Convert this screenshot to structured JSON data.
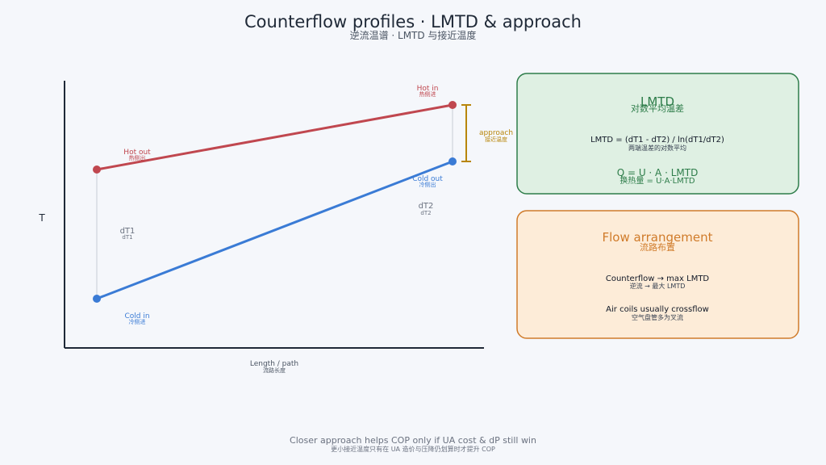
{
  "header": {
    "title": "Counterflow profiles · LMTD & approach",
    "subtitle": "逆流温谱 · LMTD 与接近温度"
  },
  "axes": {
    "y_label": "T",
    "x_label": "Length / path",
    "x_label_zh": "流路长度"
  },
  "streams": {
    "hot_in": {
      "label": "Hot in",
      "label_zh": "热侧进"
    },
    "hot_out": {
      "label": "Hot out",
      "label_zh": "热侧出"
    },
    "cold_in": {
      "label": "Cold in",
      "label_zh": "冷侧进"
    },
    "cold_out": {
      "label": "Cold out",
      "label_zh": "冷侧出"
    }
  },
  "diffs": {
    "dT1": {
      "label": "dT1",
      "label_zh": "dT1"
    },
    "dT2": {
      "label": "dT2",
      "label_zh": "dT2"
    },
    "approach": {
      "label": "approach",
      "label_zh": "接近温度"
    }
  },
  "panels": {
    "lmtd": {
      "title": "LMTD",
      "title_zh": "对数平均温差",
      "formula": "LMTD = (dT1 - dT2) / ln(dT1/dT2)",
      "formula_zh": "两端温差的对数平均",
      "q": "Q = U · A · LMTD",
      "q_zh": "换热量 = U·A·LMTD"
    },
    "flow": {
      "title": "Flow arrangement",
      "title_zh": "流路布置",
      "line1": "Counterflow → max LMTD",
      "line1_zh": "逆流 → 最大 LMTD",
      "line2": "Air coils usually crossflow",
      "line2_zh": "空气盘管多为叉流"
    }
  },
  "footer": {
    "note": "Closer approach helps COP only if UA cost & dP still win",
    "note_zh": "更小接近温度只有在 UA 造价与压降仍划算时才提升 COP"
  },
  "colors": {
    "hot": "#c0474f",
    "cold": "#3a7bd5",
    "approach": "#b8860b",
    "lmtd_border": "#2e7d4a",
    "lmtd_fill": "#dff0e3",
    "flow_border": "#d07b2a",
    "flow_fill": "#fdecd8"
  }
}
